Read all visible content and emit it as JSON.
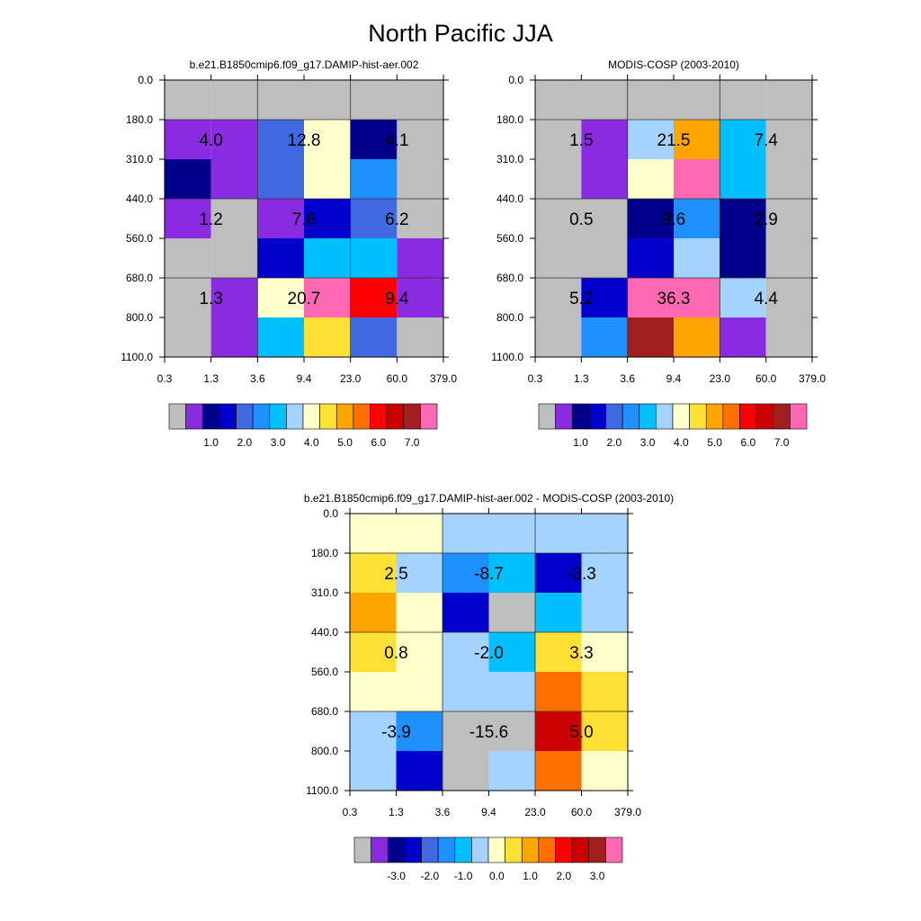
{
  "title": "North Pacific JJA",
  "x_ticks": [
    "0.3",
    "1.3",
    "3.6",
    "9.4",
    "23.0",
    "60.0",
    "379.0"
  ],
  "y_ticks": [
    "0.0",
    "180.0",
    "310.0",
    "440.0",
    "560.0",
    "680.0",
    "800.0",
    "1100.0"
  ],
  "colors": {
    "gray": "#bebebe",
    "violet": "#8a2be2",
    "navy": "#00008b",
    "darkblue": "#0000cd",
    "royalblue": "#4169e1",
    "dodgerblue": "#1e90ff",
    "skyblue": "#00bfff",
    "lightblue": "#a4d3ff",
    "cream": "#ffffcc",
    "gold": "#ffe135",
    "orange": "#ffa500",
    "darkorange": "#ff7000",
    "red": "#ff0000",
    "darkred": "#cc0000",
    "brown": "#a02020",
    "pink": "#ff69b4"
  },
  "chart_data": [
    {
      "type": "heatmap",
      "title": "b.e21.B1850cmip6.f09_g17.DAMIP-hist-aer.002",
      "x_ticks": [
        "0.3",
        "1.3",
        "3.6",
        "9.4",
        "23.0",
        "60.0",
        "379.0"
      ],
      "y_ticks": [
        "0.0",
        "180.0",
        "310.0",
        "440.0",
        "560.0",
        "680.0",
        "800.0",
        "1100.0"
      ],
      "cells": [
        [
          "gray",
          "gray",
          "gray",
          "gray",
          "gray",
          "gray"
        ],
        [
          "violet",
          "violet",
          "royalblue",
          "cream",
          "navy",
          "gray"
        ],
        [
          "navy",
          "violet",
          "royalblue",
          "cream",
          "dodgerblue",
          "gray"
        ],
        [
          "violet",
          "gray",
          "violet",
          "darkblue",
          "royalblue",
          "gray"
        ],
        [
          "gray",
          "gray",
          "darkblue",
          "skyblue",
          "skyblue",
          "violet"
        ],
        [
          "gray",
          "violet",
          "cream",
          "pink",
          "red",
          "violet"
        ],
        [
          "gray",
          "violet",
          "skyblue",
          "gold",
          "royalblue",
          "gray"
        ]
      ],
      "annotations": [
        "4.0",
        "12.8",
        "4.1",
        "1.2",
        "7.6",
        "6.2",
        "1.3",
        "20.7",
        "9.4"
      ],
      "colorbar": {
        "colors": [
          "gray",
          "violet",
          "navy",
          "darkblue",
          "royalblue",
          "dodgerblue",
          "skyblue",
          "lightblue",
          "cream",
          "gold",
          "orange",
          "darkorange",
          "red",
          "darkred",
          "brown",
          "pink"
        ],
        "labels": [
          "1.0",
          "2.0",
          "3.0",
          "4.0",
          "5.0",
          "6.0",
          "7.0"
        ]
      }
    },
    {
      "type": "heatmap",
      "title": "MODIS-COSP (2003-2010)",
      "x_ticks": [
        "0.3",
        "1.3",
        "3.6",
        "9.4",
        "23.0",
        "60.0",
        "379.0"
      ],
      "y_ticks": [
        "0.0",
        "180.0",
        "310.0",
        "440.0",
        "560.0",
        "680.0",
        "800.0",
        "1100.0"
      ],
      "cells": [
        [
          "gray",
          "gray",
          "gray",
          "gray",
          "gray",
          "gray"
        ],
        [
          "gray",
          "violet",
          "lightblue",
          "orange",
          "skyblue",
          "gray"
        ],
        [
          "gray",
          "violet",
          "cream",
          "pink",
          "skyblue",
          "gray"
        ],
        [
          "gray",
          "gray",
          "navy",
          "dodgerblue",
          "navy",
          "gray"
        ],
        [
          "gray",
          "gray",
          "darkblue",
          "lightblue",
          "navy",
          "gray"
        ],
        [
          "gray",
          "darkblue",
          "pink",
          "pink",
          "lightblue",
          "gray"
        ],
        [
          "gray",
          "dodgerblue",
          "brown",
          "orange",
          "violet",
          "gray"
        ]
      ],
      "annotations": [
        "1.5",
        "21.5",
        "7.4",
        "0.5",
        "9.6",
        "2.9",
        "5.2",
        "36.3",
        "4.4"
      ],
      "colorbar": {
        "colors": [
          "gray",
          "violet",
          "navy",
          "darkblue",
          "royalblue",
          "dodgerblue",
          "skyblue",
          "lightblue",
          "cream",
          "gold",
          "orange",
          "darkorange",
          "red",
          "darkred",
          "brown",
          "pink"
        ],
        "labels": [
          "1.0",
          "2.0",
          "3.0",
          "4.0",
          "5.0",
          "6.0",
          "7.0"
        ]
      }
    },
    {
      "type": "heatmap",
      "title": "b.e21.B1850cmip6.f09_g17.DAMIP-hist-aer.002 - MODIS-COSP (2003-2010)",
      "x_ticks": [
        "0.3",
        "1.3",
        "3.6",
        "9.4",
        "23.0",
        "60.0",
        "379.0"
      ],
      "y_ticks": [
        "0.0",
        "180.0",
        "310.0",
        "440.0",
        "560.0",
        "680.0",
        "800.0",
        "1100.0"
      ],
      "cells": [
        [
          "cream",
          "cream",
          "lightblue",
          "lightblue",
          "lightblue",
          "lightblue"
        ],
        [
          "gold",
          "lightblue",
          "dodgerblue",
          "skyblue",
          "darkblue",
          "lightblue"
        ],
        [
          "orange",
          "cream",
          "darkblue",
          "gray",
          "skyblue",
          "lightblue"
        ],
        [
          "gold",
          "cream",
          "lightblue",
          "skyblue",
          "gold",
          "cream"
        ],
        [
          "cream",
          "cream",
          "lightblue",
          "lightblue",
          "darkorange",
          "gold"
        ],
        [
          "lightblue",
          "dodgerblue",
          "gray",
          "gray",
          "darkred",
          "gold"
        ],
        [
          "lightblue",
          "darkblue",
          "gray",
          "lightblue",
          "darkorange",
          "cream"
        ]
      ],
      "annotations": [
        "2.5",
        "-8.7",
        "-3.3",
        "0.8",
        "-2.0",
        "3.3",
        "-3.9",
        "-15.6",
        "5.0"
      ],
      "colorbar": {
        "colors": [
          "gray",
          "violet",
          "navy",
          "darkblue",
          "royalblue",
          "dodgerblue",
          "skyblue",
          "lightblue",
          "cream",
          "gold",
          "orange",
          "darkorange",
          "red",
          "darkred",
          "brown",
          "pink"
        ],
        "labels": [
          "-3.0",
          "-2.0",
          "-1.0",
          "0.0",
          "1.0",
          "2.0",
          "3.0"
        ]
      }
    }
  ]
}
